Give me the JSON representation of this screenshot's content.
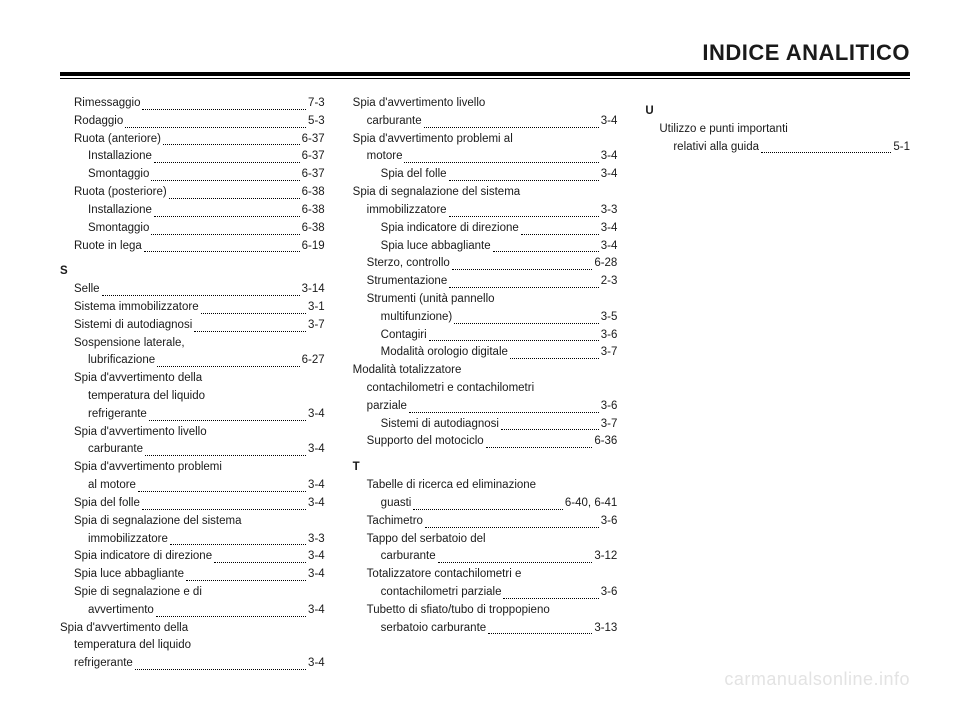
{
  "title": "INDICE ANALITICO",
  "watermark": "carmanualsonline.info",
  "columns": [
    {
      "items": [
        {
          "type": "entry",
          "indent": 1,
          "label": "Rimessaggio",
          "page": "7-3"
        },
        {
          "type": "entry",
          "indent": 1,
          "label": "Rodaggio",
          "page": "5-3"
        },
        {
          "type": "entry",
          "indent": 1,
          "label": "Ruota (anteriore)",
          "page": "6-37"
        },
        {
          "type": "entry",
          "indent": 2,
          "label": "Installazione",
          "page": "6-37"
        },
        {
          "type": "entry",
          "indent": 2,
          "label": "Smontaggio",
          "page": "6-37"
        },
        {
          "type": "entry",
          "indent": 1,
          "label": "Ruota (posteriore)",
          "page": "6-38"
        },
        {
          "type": "entry",
          "indent": 2,
          "label": "Installazione",
          "page": "6-38"
        },
        {
          "type": "entry",
          "indent": 2,
          "label": "Smontaggio",
          "page": "6-38"
        },
        {
          "type": "entry",
          "indent": 1,
          "label": "Ruote in lega",
          "page": "6-19"
        },
        {
          "type": "letter",
          "text": "S"
        },
        {
          "type": "entry",
          "indent": 1,
          "label": "Selle",
          "page": "3-14"
        },
        {
          "type": "entry",
          "indent": 1,
          "label": "Sistema immobilizzatore",
          "page": "3-1"
        },
        {
          "type": "entry",
          "indent": 1,
          "label": "Sistemi di autodiagnosi",
          "page": "3-7"
        },
        {
          "type": "multi",
          "indent": 1,
          "lines": [
            "Sospensione laterale,"
          ],
          "last": "lubrificazione",
          "page": "6-27"
        },
        {
          "type": "multi",
          "indent": 1,
          "lines": [
            "Spia d'avvertimento della",
            "temperatura del liquido"
          ],
          "last": "refrigerante",
          "page": "3-4"
        },
        {
          "type": "multi",
          "indent": 1,
          "lines": [
            "Spia d'avvertimento livello"
          ],
          "last": "carburante",
          "page": "3-4"
        },
        {
          "type": "multi",
          "indent": 1,
          "lines": [
            "Spia d'avvertimento problemi"
          ],
          "last": "al motore",
          "page": "3-4"
        },
        {
          "type": "entry",
          "indent": 1,
          "label": "Spia del folle",
          "page": "3-4"
        },
        {
          "type": "multi",
          "indent": 1,
          "lines": [
            "Spia di segnalazione del sistema"
          ],
          "last": "immobilizzatore",
          "page": "3-3"
        },
        {
          "type": "entry",
          "indent": 1,
          "label": "Spia indicatore di direzione",
          "page": "3-4"
        },
        {
          "type": "entry",
          "indent": 1,
          "label": "Spia luce abbagliante",
          "page": "3-4"
        },
        {
          "type": "multi",
          "indent": 1,
          "lines": [
            "Spie di segnalazione e di"
          ],
          "last": "avvertimento",
          "page": "3-4"
        },
        {
          "type": "multi",
          "indent": 2,
          "lines": [
            "Spia d'avvertimento della",
            "temperatura del liquido"
          ],
          "last": "refrigerante",
          "page": "3-4"
        }
      ]
    },
    {
      "items": [
        {
          "type": "multi",
          "indent": 2,
          "lines": [
            "Spia d'avvertimento livello"
          ],
          "last": "carburante",
          "page": "3-4"
        },
        {
          "type": "multi",
          "indent": 2,
          "lines": [
            "Spia d'avvertimento problemi al"
          ],
          "last": "motore",
          "page": "3-4"
        },
        {
          "type": "entry",
          "indent": 2,
          "label": "Spia del folle",
          "page": "3-4"
        },
        {
          "type": "multi",
          "indent": 2,
          "lines": [
            "Spia di segnalazione del sistema"
          ],
          "last": "immobilizzatore",
          "page": "3-3"
        },
        {
          "type": "entry",
          "indent": 2,
          "label": "Spia indicatore di direzione",
          "page": "3-4"
        },
        {
          "type": "entry",
          "indent": 2,
          "label": "Spia luce abbagliante",
          "page": "3-4"
        },
        {
          "type": "entry",
          "indent": 1,
          "label": "Sterzo, controllo",
          "page": "6-28"
        },
        {
          "type": "entry",
          "indent": 1,
          "label": "Strumentazione",
          "page": "2-3"
        },
        {
          "type": "multi",
          "indent": 1,
          "lines": [
            "Strumenti (unità pannello"
          ],
          "last": "multifunzione)",
          "page": "3-5"
        },
        {
          "type": "entry",
          "indent": 2,
          "label": "Contagiri",
          "page": "3-6"
        },
        {
          "type": "entry",
          "indent": 2,
          "label": "Modalità orologio digitale",
          "page": "3-7"
        },
        {
          "type": "multi",
          "indent": 2,
          "lines": [
            "Modalità totalizzatore",
            "contachilometri e contachilometri"
          ],
          "last": "parziale",
          "page": "3-6"
        },
        {
          "type": "entry",
          "indent": 2,
          "label": "Sistemi di autodiagnosi",
          "page": "3-7"
        },
        {
          "type": "entry",
          "indent": 1,
          "label": "Supporto del motociclo",
          "page": "6-36"
        },
        {
          "type": "letter",
          "text": "T"
        },
        {
          "type": "multi",
          "indent": 1,
          "lines": [
            "Tabelle di ricerca ed eliminazione"
          ],
          "last": "guasti",
          "page": "6-40, 6-41"
        },
        {
          "type": "entry",
          "indent": 1,
          "label": "Tachimetro",
          "page": "3-6"
        },
        {
          "type": "multi",
          "indent": 1,
          "lines": [
            "Tappo del serbatoio del"
          ],
          "last": "carburante",
          "page": "3-12"
        },
        {
          "type": "multi",
          "indent": 1,
          "lines": [
            "Totalizzatore contachilometri e"
          ],
          "last": "contachilometri parziale",
          "page": "3-6"
        },
        {
          "type": "multi",
          "indent": 1,
          "lines": [
            "Tubetto di sfiato/tubo di troppopieno"
          ],
          "last": "serbatoio carburante",
          "page": "3-13"
        }
      ]
    },
    {
      "items": [
        {
          "type": "letter",
          "text": "U"
        },
        {
          "type": "multi",
          "indent": 1,
          "lines": [
            "Utilizzo e punti importanti"
          ],
          "last": "relativi alla guida",
          "page": "5-1"
        }
      ]
    }
  ]
}
